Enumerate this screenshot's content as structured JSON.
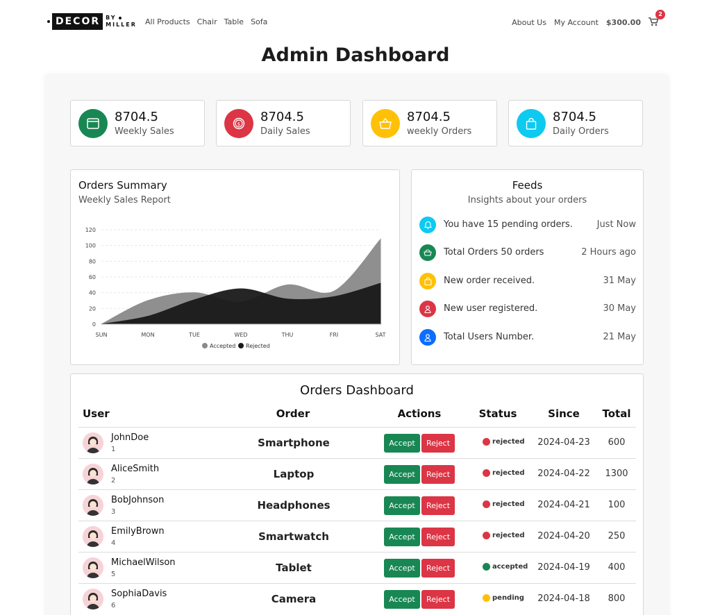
{
  "nav": {
    "logo": {
      "main": "DECOR",
      "by": "BY",
      "sub": "MILLER"
    },
    "links": [
      "All Products",
      "Chair",
      "Table",
      "Sofa"
    ],
    "about": "About Us",
    "account": "My Account",
    "balance": "$300.00",
    "cart_count": "2"
  },
  "page_title": "Admin Dashboard",
  "stats": [
    {
      "value": "8704.5",
      "label": "Weekly Sales",
      "color": "#198754",
      "icon": "window-icon"
    },
    {
      "value": "8704.5",
      "label": "Daily Sales",
      "color": "#dc3545",
      "icon": "coin-icon"
    },
    {
      "value": "8704.5",
      "label": "weekly Orders",
      "color": "#ffc107",
      "icon": "basket-icon"
    },
    {
      "value": "8704.5",
      "label": "Daily Orders",
      "color": "#0dcaf0",
      "icon": "bag-icon"
    }
  ],
  "orders_summary": {
    "title": "Orders Summary",
    "subtitle": "Weekly Sales Report"
  },
  "chart_data": {
    "type": "area",
    "categories": [
      "SUN",
      "MON",
      "TUE",
      "WED",
      "THU",
      "FRI",
      "SAT"
    ],
    "series": [
      {
        "name": "Accepted",
        "values": [
          0,
          30,
          40,
          28,
          50,
          42,
          108
        ],
        "color": "#8a8a8a"
      },
      {
        "name": "Rejected",
        "values": [
          0,
          10,
          31,
          45,
          32,
          35,
          52
        ],
        "color": "#1a1a1a"
      }
    ],
    "yticks": [
      0,
      20,
      40,
      60,
      80,
      100,
      120
    ],
    "ylim": [
      0,
      120
    ],
    "legend": "bottom",
    "grid": true
  },
  "feeds": {
    "title": "Feeds",
    "subtitle": "Insights about your orders",
    "items": [
      {
        "text": "You have 15 pending orders.",
        "time": "Just Now",
        "color": "#0dcaf0",
        "icon": "bell-icon"
      },
      {
        "text": "Total Orders 50 orders",
        "time": "2 Hours ago",
        "color": "#198754",
        "icon": "cart-icon"
      },
      {
        "text": "New order received.",
        "time": "31 May",
        "color": "#ffc107",
        "icon": "bag-icon"
      },
      {
        "text": "New user registered.",
        "time": "30 May",
        "color": "#dc3545",
        "icon": "user-icon"
      },
      {
        "text": "Total Users Number.",
        "time": "21 May",
        "color": "#0d6efd",
        "icon": "user-icon"
      }
    ]
  },
  "orders": {
    "title": "Orders Dashboard",
    "headers": {
      "user": "User",
      "order": "Order",
      "actions": "Actions",
      "status": "Status",
      "since": "Since",
      "total": "Total"
    },
    "accept_label": "Accept",
    "reject_label": "Reject",
    "status_colors": {
      "rejected": "#dc3545",
      "accepted": "#198754",
      "pending": "#ffc107"
    },
    "rows": [
      {
        "user": "JohnDoe",
        "id": "1",
        "order": "Smartphone",
        "status": "rejected",
        "since": "2024-04-23",
        "total": "600"
      },
      {
        "user": "AliceSmith",
        "id": "2",
        "order": "Laptop",
        "status": "rejected",
        "since": "2024-04-22",
        "total": "1300"
      },
      {
        "user": "BobJohnson",
        "id": "3",
        "order": "Headphones",
        "status": "rejected",
        "since": "2024-04-21",
        "total": "100"
      },
      {
        "user": "EmilyBrown",
        "id": "4",
        "order": "Smartwatch",
        "status": "rejected",
        "since": "2024-04-20",
        "total": "250"
      },
      {
        "user": "MichaelWilson",
        "id": "5",
        "order": "Tablet",
        "status": "accepted",
        "since": "2024-04-19",
        "total": "400"
      },
      {
        "user": "SophiaDavis",
        "id": "6",
        "order": "Camera",
        "status": "pending",
        "since": "2024-04-18",
        "total": "800"
      }
    ]
  }
}
